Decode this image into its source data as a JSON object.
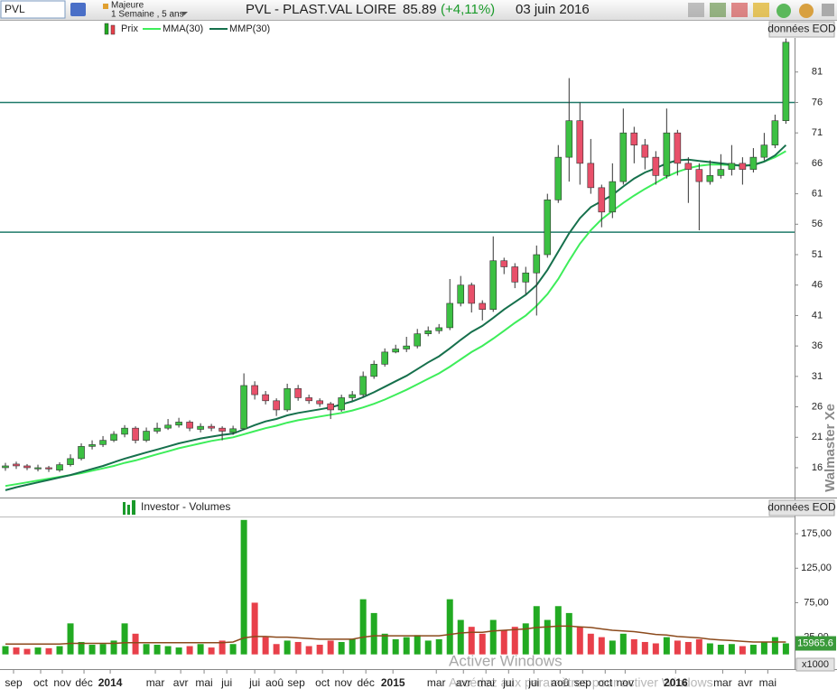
{
  "toolbar": {
    "symbol": "PVL",
    "group": "Majeure",
    "period": "1 Semaine , 5 ans",
    "title": "PVL - PLAST.VAL LOIRE",
    "price": 85.89,
    "change": "(+4,11%)",
    "date": "03 juin 2016"
  },
  "watermark": "Walmaster Xe",
  "windows_notice": [
    "Activer Windows",
    "Accédez aux paramètres pour activer Windows."
  ],
  "chart_data": [
    {
      "type": "candlestick",
      "source_label": "données EOD",
      "xlim": [
        -0.5,
        72.8
      ],
      "ylim": [
        11.25,
        86.6
      ],
      "yticks": [
        16,
        21,
        26,
        31,
        36,
        41,
        46,
        51,
        56,
        61,
        66,
        71,
        76,
        81
      ],
      "hlines": [
        76,
        54.7
      ],
      "hline_color": "#1f7a6a",
      "grid": false,
      "series": [
        {
          "name": "Prix",
          "up_color": "#3cc043",
          "down_color": "#e8506a",
          "open": [
            16.0,
            16.6,
            16.3,
            15.8,
            16.0,
            15.6,
            16.5,
            17.5,
            19.5,
            19.8,
            20.5,
            21.5,
            22.5,
            20.5,
            22,
            22.5,
            23,
            23.5,
            22.3,
            22.8,
            22.5,
            21.8,
            22.4,
            29.5,
            28,
            27,
            25.5,
            29,
            27.5,
            27,
            26.5,
            25.5,
            27.5,
            28,
            31,
            33,
            35,
            35.5,
            36,
            38,
            38.5,
            39,
            43,
            46,
            43,
            42,
            50,
            49,
            46.5,
            48,
            51,
            60,
            67,
            73,
            66,
            62,
            58,
            63,
            71,
            69,
            67,
            64,
            71,
            66,
            65,
            63,
            64,
            65,
            66,
            65,
            67,
            69,
            73
          ],
          "high": [
            16.8,
            17,
            16.6,
            16.5,
            16.3,
            16.9,
            18.2,
            20,
            20.5,
            21.2,
            22,
            23,
            22.8,
            22.6,
            23.4,
            24,
            24.2,
            23.8,
            23.3,
            23.2,
            22.8,
            22.9,
            31.5,
            30.2,
            28.6,
            27.4,
            29.8,
            29.6,
            28,
            27.4,
            26.8,
            28,
            28.6,
            31.8,
            33.6,
            35.6,
            36.2,
            37.5,
            38.8,
            39.2,
            39.6,
            47,
            47.5,
            46.4,
            43.5,
            54,
            50.5,
            49.6,
            49,
            52.5,
            61,
            69,
            80,
            76,
            70,
            62.5,
            66,
            75,
            72,
            70,
            68,
            75,
            71.5,
            67,
            66,
            66.5,
            67.5,
            69,
            67,
            68.5,
            71,
            74,
            86.5
          ],
          "low": [
            15.5,
            15.8,
            15.6,
            15.4,
            15.3,
            15.3,
            16.2,
            17.2,
            19,
            19.4,
            20.2,
            21,
            20,
            20.2,
            21.6,
            22.2,
            22.6,
            22,
            21.8,
            22,
            20.5,
            21.4,
            22.2,
            27.2,
            26.4,
            24.5,
            25.2,
            27,
            26.5,
            26,
            24,
            25.2,
            27,
            27.6,
            30.6,
            32.6,
            34.8,
            35,
            35.6,
            37.6,
            38,
            38.6,
            42.5,
            41.5,
            40.2,
            41.6,
            47.8,
            45.5,
            44.5,
            41,
            50.5,
            59.5,
            63,
            62.5,
            61,
            55.5,
            57,
            62.5,
            66,
            65,
            62.5,
            63.5,
            64,
            59.5,
            55,
            62.5,
            63.5,
            64,
            62.5,
            64.5,
            66.5,
            68.5,
            72.5
          ],
          "close": [
            16.3,
            16.3,
            16.0,
            16.0,
            15.8,
            16.5,
            17.5,
            19.5,
            19.8,
            20.5,
            21.5,
            22.5,
            20.5,
            22,
            22.5,
            23,
            23.5,
            22.5,
            22.8,
            22.5,
            22,
            22.4,
            29.5,
            28,
            27,
            25.5,
            29,
            27.5,
            27,
            26.5,
            25.5,
            27.5,
            28,
            31,
            33,
            35,
            35.5,
            36,
            38,
            38.5,
            39,
            43,
            46,
            43,
            42,
            50,
            49,
            46.5,
            48,
            51,
            60,
            67,
            73,
            66,
            62,
            58,
            63,
            71,
            69,
            67,
            64,
            71,
            66,
            65,
            63,
            64,
            65,
            66,
            65,
            67,
            69,
            73,
            85.89
          ]
        },
        {
          "name": "MMA(30)",
          "color": "#3ded5a",
          "values": [
            13.0,
            13.3,
            13.6,
            13.9,
            14.2,
            14.5,
            14.8,
            15.1,
            15.5,
            15.9,
            16.3,
            16.8,
            17.2,
            17.7,
            18.2,
            18.7,
            19.2,
            19.6,
            20.0,
            20.4,
            20.7,
            21.0,
            21.5,
            22.0,
            22.5,
            22.9,
            23.4,
            23.8,
            24.1,
            24.4,
            24.7,
            25.0,
            25.4,
            25.9,
            26.5,
            27.2,
            28.0,
            28.8,
            29.7,
            30.6,
            31.5,
            32.6,
            33.8,
            35.0,
            36.0,
            37.2,
            38.5,
            39.8,
            41.0,
            42.6,
            44.5,
            47.0,
            50.0,
            52.8,
            55.0,
            56.8,
            58.2,
            59.5,
            60.7,
            61.8,
            62.8,
            63.8,
            64.6,
            65.2,
            65.6,
            65.8,
            65.8,
            65.7,
            65.6,
            65.8,
            66.3,
            67.0,
            68.0
          ]
        },
        {
          "name": "MMP(30)",
          "color": "#16704c",
          "values": [
            12.3,
            12.8,
            13.2,
            13.6,
            14.0,
            14.4,
            14.8,
            15.3,
            15.8,
            16.3,
            16.9,
            17.5,
            18.0,
            18.5,
            19.0,
            19.5,
            20.0,
            20.4,
            20.8,
            21.1,
            21.4,
            21.6,
            22.3,
            23.0,
            23.6,
            24.0,
            24.6,
            25.0,
            25.3,
            25.6,
            25.9,
            26.4,
            26.9,
            27.6,
            28.4,
            29.3,
            30.2,
            31.1,
            32.2,
            33.3,
            34.3,
            35.6,
            37.0,
            38.3,
            39.3,
            40.6,
            42.0,
            43.2,
            44.4,
            46.0,
            48.5,
            51.5,
            54.5,
            57.0,
            58.8,
            59.8,
            60.8,
            62.2,
            63.5,
            64.5,
            65.2,
            66.0,
            66.5,
            66.6,
            66.4,
            66.2,
            66.0,
            65.8,
            65.6,
            65.7,
            66.3,
            67.3,
            69.0
          ]
        }
      ]
    },
    {
      "type": "bar",
      "source_label": "données EOD",
      "xlim": [
        -0.5,
        72.8
      ],
      "ylim": [
        -3,
        200
      ],
      "yticks": [
        {
          "value": 25,
          "label": "25,00"
        },
        {
          "value": 75,
          "label": "75,00"
        },
        {
          "value": 125,
          "label": "125,00"
        },
        {
          "value": 175,
          "label": "175,00"
        }
      ],
      "unit_label": "x1000",
      "last_value": {
        "value": 15.9656,
        "label": "15965.6"
      },
      "average_color": "#8b4a1c",
      "xticks": [
        {
          "value": 0.75,
          "label": "sep"
        },
        {
          "value": 3.25,
          "label": "oct"
        },
        {
          "value": 5.25,
          "label": "nov"
        },
        {
          "value": 7.25,
          "label": "déc"
        },
        {
          "value": 9.67,
          "label": "2014"
        },
        {
          "value": 13.83,
          "label": "mar"
        },
        {
          "value": 16.17,
          "label": "avr"
        },
        {
          "value": 18.33,
          "label": "mai"
        },
        {
          "value": 20.42,
          "label": "jui"
        },
        {
          "value": 23,
          "label": "jui"
        },
        {
          "value": 24.83,
          "label": "aoû"
        },
        {
          "value": 26.83,
          "label": "sep"
        },
        {
          "value": 29.25,
          "label": "oct"
        },
        {
          "value": 31.17,
          "label": "nov"
        },
        {
          "value": 33.25,
          "label": "déc"
        },
        {
          "value": 35.75,
          "label": "2015"
        },
        {
          "value": 39.75,
          "label": "mar"
        },
        {
          "value": 42.25,
          "label": "avr"
        },
        {
          "value": 44.33,
          "label": "mai"
        },
        {
          "value": 46.42,
          "label": "jui"
        },
        {
          "value": 48.75,
          "label": "jui"
        },
        {
          "value": 51.17,
          "label": "aoû"
        },
        {
          "value": 53.25,
          "label": "sep"
        },
        {
          "value": 55.33,
          "label": "oct"
        },
        {
          "value": 57.17,
          "label": "nov"
        },
        {
          "value": 61.83,
          "label": "2016"
        },
        {
          "value": 66.17,
          "label": "mar"
        },
        {
          "value": 68.25,
          "label": "avr"
        },
        {
          "value": 70.33,
          "label": "mai"
        }
      ],
      "series": [
        {
          "name": "Investor - Volumes",
          "values": [
            12,
            10,
            8,
            10,
            9,
            12,
            45,
            18,
            14,
            15,
            20,
            45,
            30,
            15,
            14,
            12,
            10,
            12,
            15,
            10,
            20,
            15,
            195,
            75,
            25,
            15,
            20,
            18,
            12,
            14,
            20,
            18,
            22,
            80,
            60,
            30,
            22,
            25,
            28,
            20,
            22,
            80,
            50,
            40,
            30,
            50,
            35,
            40,
            45,
            70,
            50,
            70,
            60,
            40,
            30,
            25,
            20,
            30,
            22,
            18,
            16,
            25,
            20,
            18,
            22,
            16,
            14,
            15,
            12,
            14,
            18,
            25,
            16
          ]
        },
        {
          "values": [
            15,
            15,
            15,
            15,
            15,
            15,
            16,
            16,
            16,
            16,
            16,
            17,
            17,
            17,
            17,
            17,
            17,
            17,
            17,
            17,
            17,
            18,
            24,
            26,
            26,
            25,
            25,
            24,
            23,
            22,
            22,
            22,
            22,
            25,
            27,
            27,
            27,
            27,
            27,
            27,
            27,
            29,
            31,
            32,
            32,
            34,
            35,
            36,
            37,
            39,
            40,
            41,
            41,
            40,
            39,
            37,
            35,
            34,
            33,
            31,
            29,
            28,
            26,
            25,
            24,
            22,
            21,
            20,
            19,
            18,
            18,
            18,
            18
          ]
        }
      ]
    }
  ]
}
